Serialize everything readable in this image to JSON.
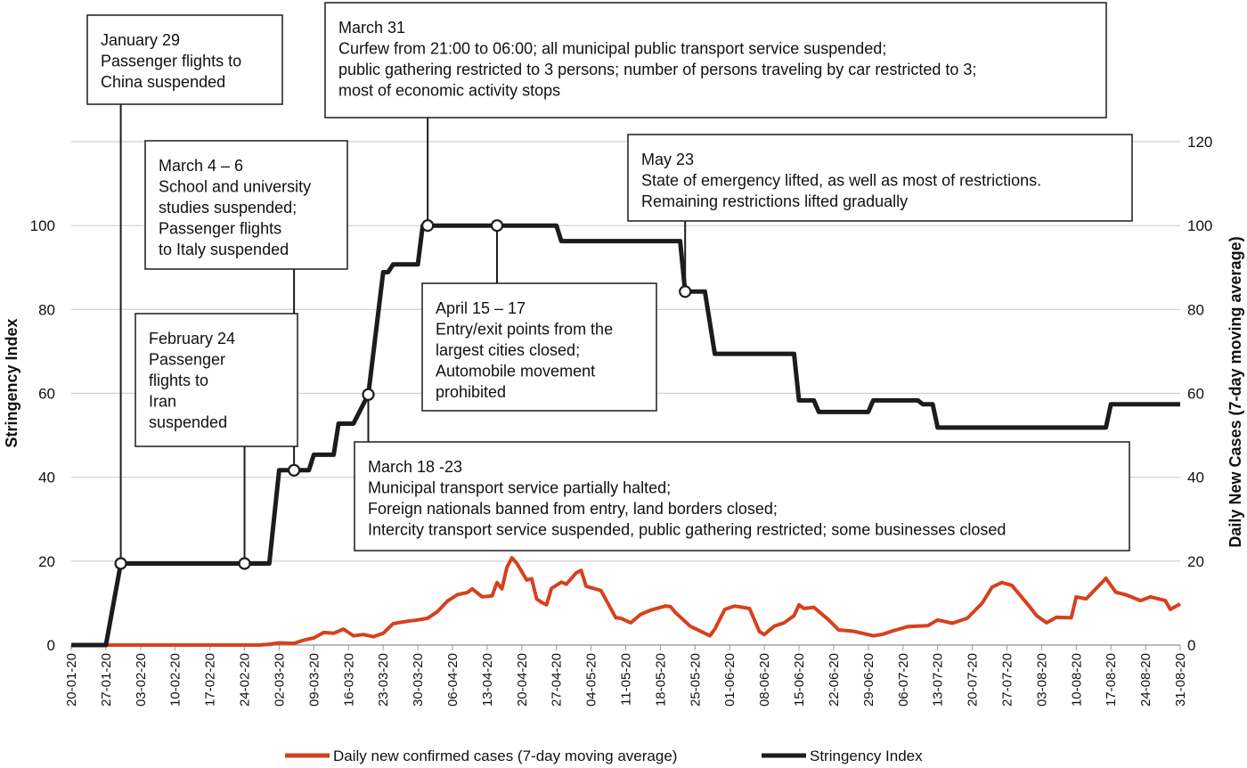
{
  "chart_data": {
    "type": "line",
    "ylabel": "Stringency Index",
    "y2label": "Daily New Cases (7-day moving average)",
    "xlim": [
      "20-01-20",
      "31-08-20"
    ],
    "xticks": [
      "20-01-20",
      "27-01-20",
      "03-02-20",
      "10-02-20",
      "17-02-20",
      "24-02-20",
      "02-03-20",
      "09-03-20",
      "16-03-20",
      "23-03-20",
      "30-03-20",
      "06-04-20",
      "13-04-20",
      "20-04-20",
      "27-04-20",
      "04-05-20",
      "11-05-20",
      "18-05-20",
      "25-05-20",
      "01-06-20",
      "08-06-20",
      "15-06-20",
      "22-06-20",
      "29-06-20",
      "06-07-20",
      "13-07-20",
      "20-07-20",
      "27-07-20",
      "03-08-20",
      "10-08-20",
      "17-08-20",
      "24-08-20",
      "31-08-20"
    ],
    "ylim": [
      0,
      120
    ],
    "yticks": [
      0,
      20,
      40,
      60,
      80,
      100
    ],
    "y2lim": [
      0,
      120
    ],
    "y2ticks": [
      0,
      20,
      40,
      60,
      80,
      100,
      120
    ],
    "grid": true,
    "legend": "bottom",
    "series": [
      {
        "name": "Daily new confirmed cases (7-day moving average)",
        "color": "#d7401c",
        "axis": "y2",
        "x": [
          "27-01-20",
          "27-02-20",
          "29-02-20",
          "02-03-20",
          "05-03-20",
          "07-03-20",
          "09-03-20",
          "11-03-20",
          "13-03-20",
          "15-03-20",
          "17-03-20",
          "19-03-20",
          "21-03-20",
          "23-03-20",
          "25-03-20",
          "28-03-20",
          "30-03-20",
          "01-04-20",
          "03-04-20",
          "05-04-20",
          "07-04-20",
          "09-04-20",
          "10-04-20",
          "12-04-20",
          "14-04-20",
          "15-04-20",
          "16-04-20",
          "17-04-20",
          "18-04-20",
          "19-04-20",
          "21-04-20",
          "22-04-20",
          "23-04-20",
          "24-04-20",
          "25-04-20",
          "26-04-20",
          "28-04-20",
          "29-04-20",
          "01-05-20",
          "02-05-20",
          "03-05-20",
          "06-05-20",
          "09-05-20",
          "10-05-20",
          "12-05-20",
          "14-05-20",
          "16-05-20",
          "19-05-20",
          "20-05-20",
          "21-05-20",
          "24-05-20",
          "28-05-20",
          "29-05-20",
          "31-05-20",
          "02-06-20",
          "05-06-20",
          "07-06-20",
          "08-06-20",
          "10-06-20",
          "12-06-20",
          "14-06-20",
          "15-06-20",
          "16-06-20",
          "18-06-20",
          "21-06-20",
          "23-06-20",
          "26-06-20",
          "30-06-20",
          "02-07-20",
          "04-07-20",
          "07-07-20",
          "11-07-20",
          "13-07-20",
          "16-07-20",
          "19-07-20",
          "22-07-20",
          "24-07-20",
          "26-07-20",
          "28-07-20",
          "31-07-20",
          "02-08-20",
          "04-08-20",
          "06-08-20",
          "09-08-20",
          "10-08-20",
          "12-08-20",
          "16-08-20",
          "18-08-20",
          "20-08-20",
          "23-08-20",
          "25-08-20",
          "28-08-20",
          "29-08-20",
          "31-08-20"
        ],
        "values": [
          0,
          0,
          0.2,
          0.5,
          0.4,
          1.2,
          1.7,
          3,
          2.8,
          3.8,
          2.2,
          2.5,
          2,
          2.8,
          5.1,
          5.7,
          6,
          6.4,
          8,
          10.5,
          12,
          12.5,
          13.4,
          11.5,
          11.7,
          14.9,
          13.4,
          18.5,
          20.8,
          19.5,
          15.5,
          15.8,
          11,
          10.2,
          9.6,
          13.5,
          15,
          14.5,
          17.2,
          17.8,
          14,
          13,
          6.5,
          6.4,
          5.3,
          7.3,
          8.3,
          9.3,
          9.2,
          7.8,
          4.5,
          2.2,
          3.8,
          8.5,
          9.3,
          8.7,
          3.2,
          2.5,
          4.5,
          5.3,
          7,
          9.6,
          8.7,
          9,
          6,
          3.6,
          3.3,
          2.2,
          2.6,
          3.4,
          4.4,
          4.6,
          6,
          5.2,
          6.4,
          10,
          13.8,
          14.9,
          14.2,
          10,
          7,
          5.3,
          6.6,
          6.5,
          11.5,
          11,
          15.9,
          12.6,
          12,
          10.6,
          11.5,
          10.6,
          8.5,
          9.8
        ]
      },
      {
        "name": "Stringency Index",
        "color": "#1c1c1c",
        "x": [
          "20-01-20",
          "27-01-20",
          "30-01-20",
          "29-02-20",
          "02-03-20",
          "08-03-20",
          "09-03-20",
          "13-03-20",
          "14-03-20",
          "17-03-20",
          "20-03-20",
          "23-03-20",
          "24-03-20",
          "25-03-20",
          "30-03-20",
          "31-03-20",
          "27-04-20",
          "28-04-20",
          "22-05-20",
          "23-05-20",
          "27-05-20",
          "29-05-20",
          "14-06-20",
          "15-06-20",
          "18-06-20",
          "19-06-20",
          "29-06-20",
          "30-06-20",
          "09-07-20",
          "10-07-20",
          "12-07-20",
          "13-07-20",
          "16-08-20",
          "17-08-20",
          "31-08-20"
        ],
        "values": [
          0,
          0,
          19.44,
          19.44,
          41.67,
          41.67,
          45.37,
          45.37,
          52.78,
          52.78,
          59.72,
          88.89,
          88.89,
          90.74,
          90.74,
          100,
          100,
          96.3,
          96.3,
          84.26,
          84.26,
          69.44,
          69.44,
          58.33,
          58.33,
          55.56,
          55.56,
          58.33,
          58.33,
          57.41,
          57.41,
          51.85,
          51.85,
          57.41,
          57.41
        ]
      }
    ],
    "annotations": [
      {
        "text": [
          "January 29",
          "Passenger flights to",
          "China suspended"
        ],
        "x": "30-01-20",
        "y": 19.44
      },
      {
        "text": [
          "March 4 – 6",
          "School and university",
          "studies suspended;",
          "Passenger flights",
          "to Italy suspended"
        ],
        "x": "05-03-20",
        "y": 41.67
      },
      {
        "text": [
          "February 24",
          "Passenger",
          "flights to",
          "Iran",
          "suspended"
        ],
        "x": "24-02-20",
        "y": 19.44
      },
      {
        "text": [
          "March 18 -23",
          "Municipal transport service partially halted;",
          "Foreign nationals banned from entry, land borders closed;",
          "Intercity transport service suspended, public gathering restricted; some businesses closed"
        ],
        "x": "20-03-20",
        "y": 59.72
      },
      {
        "text": [
          "March 31",
          "Curfew from 21:00 to 06:00; all municipal public transport service suspended;",
          "public gathering restricted to 3 persons; number of persons traveling by car restricted to 3;",
          "most of economic activity stops"
        ],
        "x": "01-04-20",
        "y": 100
      },
      {
        "text": [
          "April 15 – 17",
          "Entry/exit points from the",
          "largest cities closed;",
          "Automobile movement",
          "prohibited"
        ],
        "x": "15-04-20",
        "y": 100
      },
      {
        "text": [
          "May 23",
          "State of emergency lifted, as well as most of restrictions.",
          "Remaining restrictions lifted gradually"
        ],
        "x": "23-05-20",
        "y": 84.26
      }
    ]
  }
}
